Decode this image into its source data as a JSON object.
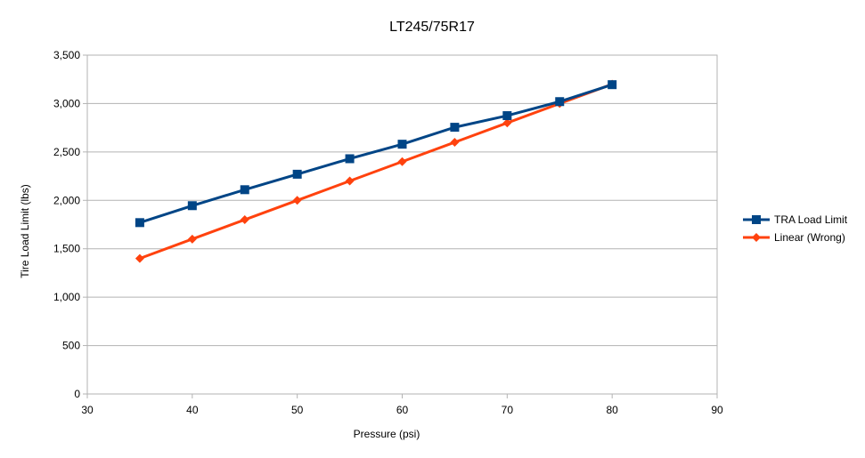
{
  "chart_data": {
    "type": "line",
    "title": "LT245/75R17",
    "xlabel": "Pressure (psi)",
    "ylabel": "Tire Load Limit (lbs)",
    "xlim": [
      30,
      90
    ],
    "ylim": [
      0,
      3500
    ],
    "x_ticks": [
      30,
      40,
      50,
      60,
      70,
      80,
      90
    ],
    "y_ticks": [
      0,
      500,
      1000,
      1500,
      2000,
      2500,
      3000,
      3500
    ],
    "x_tick_labels": [
      "30",
      "40",
      "50",
      "60",
      "70",
      "80",
      "90"
    ],
    "y_tick_labels": [
      "0",
      "500",
      "1,000",
      "1,500",
      "2,000",
      "2,500",
      "3,000",
      "3,500"
    ],
    "grid": "horizontal",
    "legend_position": "right",
    "x": [
      35,
      40,
      45,
      50,
      55,
      60,
      65,
      70,
      75,
      80
    ],
    "series": [
      {
        "name": "TRA Load Limit",
        "color": "#004586",
        "marker": "square",
        "values": [
          1770,
          1945,
          2110,
          2270,
          2430,
          2580,
          2755,
          2875,
          3020,
          3195
        ]
      },
      {
        "name": "Linear (Wrong)",
        "color": "#ff420e",
        "marker": "diamond",
        "values": [
          1400,
          1600,
          1800,
          2000,
          2200,
          2400,
          2600,
          2800,
          3000,
          3200
        ]
      }
    ]
  }
}
